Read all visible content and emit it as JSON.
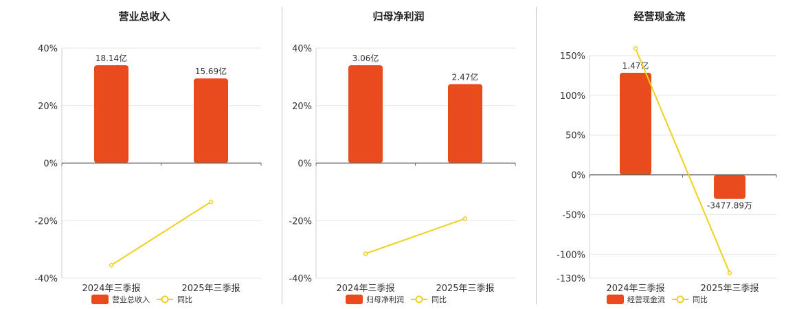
{
  "legend_yoy_label": "同比",
  "colors": {
    "bar": "#e84c1c",
    "line": "#f0d01c",
    "grid": "#e6e6e6",
    "axis": "#666666",
    "text": "#333333"
  },
  "chart_data": [
    {
      "type": "bar",
      "title": "营业总收入",
      "categories": [
        "2024年三季报",
        "2025年三季报"
      ],
      "series": [
        {
          "name": "营业总收入",
          "type": "bar",
          "values": [
            18.14,
            15.69
          ],
          "labels": [
            "18.14亿",
            "15.69亿"
          ]
        },
        {
          "name": "同比",
          "type": "line",
          "values": [
            -35.5,
            -13.5
          ]
        }
      ],
      "ylim": [
        -40,
        40
      ],
      "yticks": [
        -40,
        -20,
        0,
        20,
        40
      ],
      "ytick_labels": [
        "-40%",
        "-20%",
        "0%",
        "20%",
        "40%"
      ],
      "grid": true,
      "legend": "bottom"
    },
    {
      "type": "bar",
      "title": "归母净利润",
      "categories": [
        "2024年三季报",
        "2025年三季报"
      ],
      "series": [
        {
          "name": "归母净利润",
          "type": "bar",
          "values": [
            3.06,
            2.47
          ],
          "labels": [
            "3.06亿",
            "2.47亿"
          ]
        },
        {
          "name": "同比",
          "type": "line",
          "values": [
            -31.5,
            -19.3
          ]
        }
      ],
      "ylim": [
        -40,
        40
      ],
      "yticks": [
        -40,
        -20,
        0,
        20,
        40
      ],
      "ytick_labels": [
        "-40%",
        "-20%",
        "0%",
        "20%",
        "40%"
      ],
      "grid": true,
      "legend": "bottom"
    },
    {
      "type": "bar",
      "title": "经营现金流",
      "categories": [
        "2024年三季报",
        "2025年三季报"
      ],
      "series": [
        {
          "name": "经营现金流",
          "type": "bar",
          "values": [
            1.47,
            -0.347789
          ],
          "labels": [
            "1.47亿",
            "-3477.89万"
          ]
        },
        {
          "name": "同比",
          "type": "line",
          "values": [
            159,
            -123.5
          ]
        }
      ],
      "ylim": [
        -130,
        150
      ],
      "yticks": [
        -130,
        -100,
        -50,
        0,
        50,
        100,
        150
      ],
      "ytick_labels": [
        "-130%",
        "-100%",
        "-50%",
        "0%",
        "50%",
        "100%",
        "150%"
      ],
      "grid": true,
      "legend": "bottom"
    }
  ]
}
